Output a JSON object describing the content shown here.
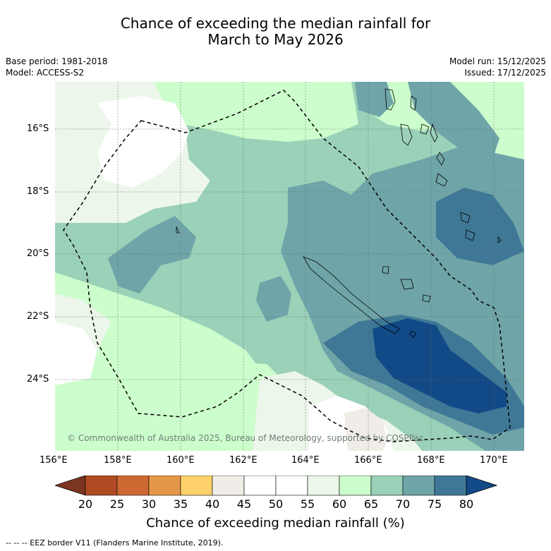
{
  "title": {
    "line1": "Chance of exceeding the median rainfall for",
    "line2": "March to May 2026"
  },
  "meta": {
    "base_period": "Base period: 1981-2018",
    "model": "Model: ACCESS-S2",
    "model_run": "Model run: 15/12/2025",
    "issued": "Issued: 17/12/2025"
  },
  "map": {
    "longitude_ticks": [
      "156°E",
      "158°E",
      "160°E",
      "162°E",
      "164°E",
      "166°E",
      "168°E",
      "170°E"
    ],
    "latitude_ticks": [
      "16°S",
      "18°S",
      "20°S",
      "22°S",
      "24°S"
    ],
    "copyright": "© Commonwealth of Australia 2025, Bureau of Meteorology, supported by COSPPac",
    "colors": {
      "c45_50": "#f0ece7",
      "c50_55": "#ffffff",
      "c55_60": "#ecf6ea",
      "c60_65": "#ccfdcc",
      "c65_70": "#9ad1b8",
      "c70_75": "#6fa5a8",
      "c75_80": "#3f7896",
      "c80p": "#114a87"
    }
  },
  "colorbar": {
    "labels": [
      "20",
      "25",
      "30",
      "35",
      "40",
      "45",
      "50",
      "55",
      "60",
      "65",
      "70",
      "75",
      "80"
    ],
    "colors": [
      "#7c3520",
      "#b04b24",
      "#cf6934",
      "#e59749",
      "#fed16a",
      "#f0ece7",
      "#ffffff",
      "#ffffff",
      "#ecf6ea",
      "#ccfdcc",
      "#9ad1b8",
      "#6fa5a8",
      "#3f7896",
      "#114a87"
    ],
    "title": "Chance of exceeding median rainfall (%)"
  },
  "legend": {
    "eez": "--  --  -- EEZ border V11 (Flanders Marine Institute, 2019)."
  }
}
